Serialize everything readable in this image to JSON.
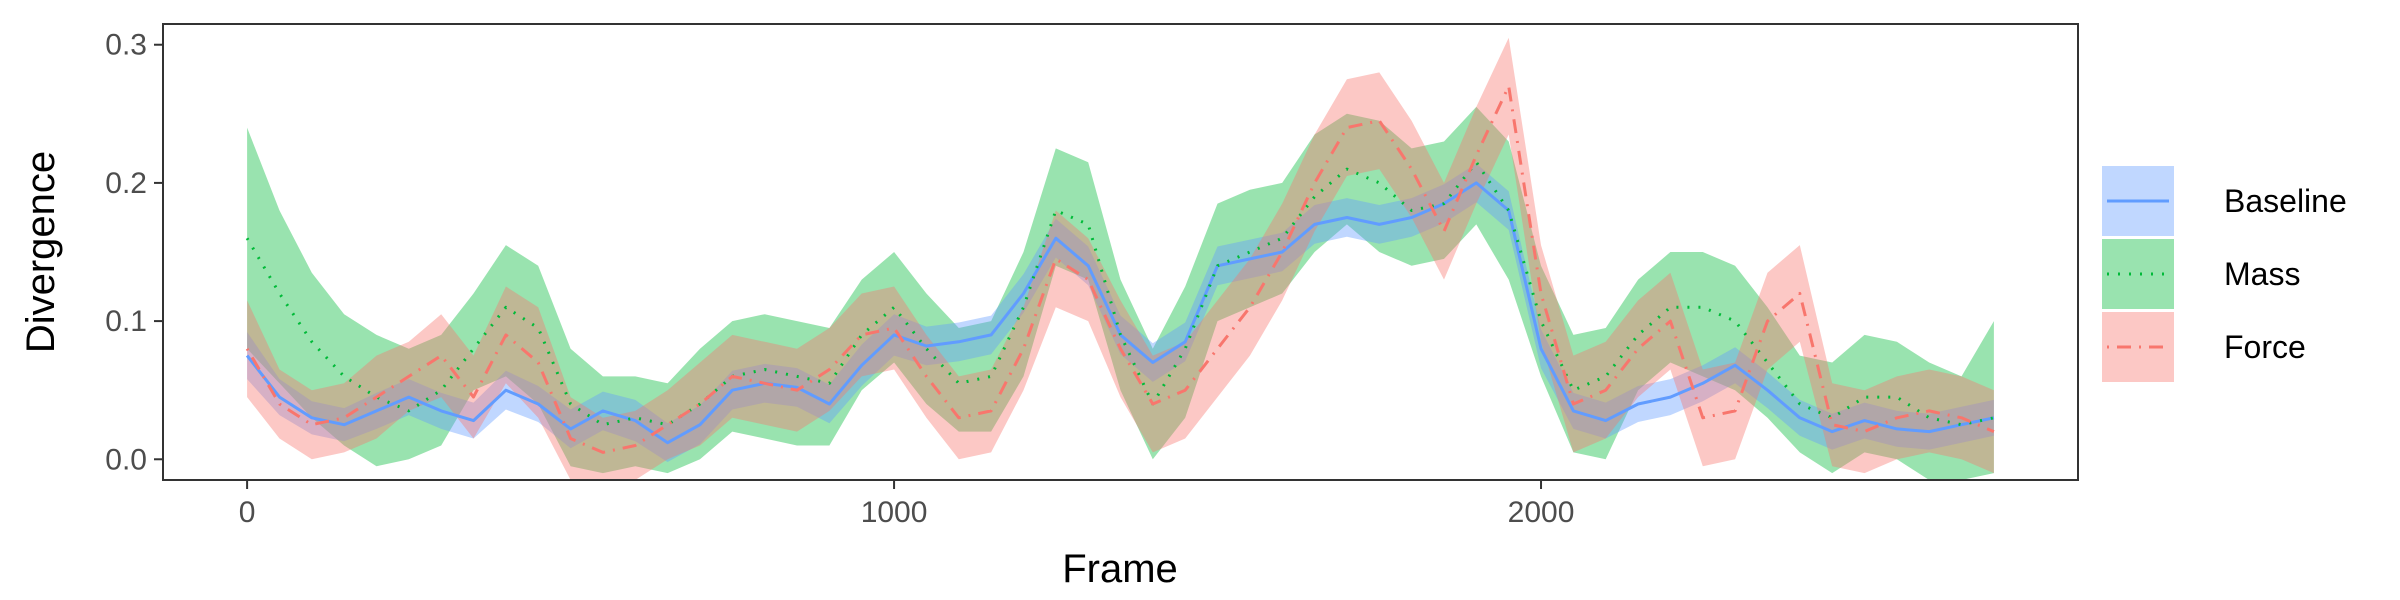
{
  "chart_data": {
    "type": "line",
    "xlabel": "Frame",
    "ylabel": "Divergence",
    "xlim": [
      -130,
      2830
    ],
    "ylim": [
      -0.015,
      0.315
    ],
    "x_ticks": [
      0,
      1000,
      2000
    ],
    "x_tick_labels": [
      "0",
      "1000",
      "2000"
    ],
    "y_ticks": [
      0.0,
      0.1,
      0.2,
      0.3
    ],
    "y_tick_labels": [
      "0.0",
      "0.1",
      "0.2",
      "0.3"
    ],
    "grid": false,
    "legend_position": "right",
    "x": [
      0,
      50,
      100,
      150,
      200,
      250,
      300,
      350,
      400,
      450,
      500,
      550,
      600,
      650,
      700,
      750,
      800,
      850,
      900,
      950,
      1000,
      1050,
      1100,
      1150,
      1200,
      1250,
      1300,
      1350,
      1400,
      1450,
      1500,
      1550,
      1600,
      1650,
      1700,
      1750,
      1800,
      1850,
      1900,
      1950,
      2000,
      2050,
      2100,
      2150,
      2200,
      2250,
      2300,
      2350,
      2400,
      2450,
      2500,
      2550,
      2600,
      2650,
      2700
    ],
    "series": [
      {
        "name": "Baseline",
        "color": "#619CFF",
        "line_style": "solid",
        "values": [
          0.075,
          0.045,
          0.03,
          0.025,
          0.035,
          0.045,
          0.035,
          0.028,
          0.05,
          0.04,
          0.022,
          0.035,
          0.028,
          0.012,
          0.025,
          0.05,
          0.055,
          0.052,
          0.04,
          0.068,
          0.09,
          0.082,
          0.085,
          0.09,
          0.12,
          0.16,
          0.14,
          0.09,
          0.07,
          0.085,
          0.14,
          0.145,
          0.15,
          0.17,
          0.175,
          0.17,
          0.175,
          0.185,
          0.2,
          0.18,
          0.08,
          0.035,
          0.028,
          0.04,
          0.045,
          0.055,
          0.068,
          0.05,
          0.03,
          0.02,
          0.028,
          0.022,
          0.02,
          0.025,
          0.03
        ],
        "lower": [
          0.058,
          0.032,
          0.018,
          0.013,
          0.022,
          0.032,
          0.022,
          0.015,
          0.036,
          0.027,
          0.008,
          0.021,
          0.013,
          -0.002,
          0.011,
          0.036,
          0.041,
          0.038,
          0.026,
          0.053,
          0.075,
          0.068,
          0.071,
          0.076,
          0.106,
          0.146,
          0.126,
          0.076,
          0.056,
          0.071,
          0.126,
          0.131,
          0.136,
          0.156,
          0.161,
          0.156,
          0.161,
          0.171,
          0.186,
          0.166,
          0.066,
          0.022,
          0.015,
          0.027,
          0.032,
          0.042,
          0.055,
          0.037,
          0.017,
          0.007,
          0.015,
          0.009,
          0.007,
          0.012,
          0.017
        ],
        "upper": [
          0.092,
          0.058,
          0.042,
          0.037,
          0.048,
          0.058,
          0.048,
          0.041,
          0.064,
          0.053,
          0.036,
          0.049,
          0.043,
          0.026,
          0.039,
          0.064,
          0.069,
          0.066,
          0.054,
          0.083,
          0.105,
          0.096,
          0.099,
          0.104,
          0.134,
          0.174,
          0.154,
          0.104,
          0.084,
          0.099,
          0.154,
          0.159,
          0.164,
          0.184,
          0.189,
          0.184,
          0.189,
          0.199,
          0.214,
          0.194,
          0.094,
          0.048,
          0.041,
          0.053,
          0.058,
          0.068,
          0.081,
          0.063,
          0.043,
          0.033,
          0.041,
          0.035,
          0.033,
          0.038,
          0.043
        ]
      },
      {
        "name": "Mass",
        "color": "#00BA38",
        "line_style": "dotted",
        "values": [
          0.16,
          0.12,
          0.085,
          0.06,
          0.045,
          0.035,
          0.05,
          0.08,
          0.11,
          0.095,
          0.04,
          0.025,
          0.03,
          0.025,
          0.04,
          0.06,
          0.065,
          0.06,
          0.055,
          0.09,
          0.11,
          0.08,
          0.055,
          0.06,
          0.11,
          0.18,
          0.17,
          0.09,
          0.04,
          0.08,
          0.14,
          0.15,
          0.16,
          0.19,
          0.21,
          0.2,
          0.18,
          0.185,
          0.215,
          0.18,
          0.1,
          0.05,
          0.06,
          0.09,
          0.11,
          0.11,
          0.1,
          0.07,
          0.04,
          0.03,
          0.045,
          0.045,
          0.03,
          0.025,
          0.03
        ],
        "lower": [
          0.08,
          0.055,
          0.03,
          0.01,
          -0.005,
          0.0,
          0.01,
          0.05,
          0.06,
          0.04,
          -0.005,
          -0.01,
          -0.005,
          -0.01,
          0.0,
          0.02,
          0.015,
          0.01,
          0.01,
          0.05,
          0.07,
          0.04,
          0.02,
          0.02,
          0.06,
          0.14,
          0.13,
          0.05,
          0.0,
          0.03,
          0.1,
          0.11,
          0.12,
          0.15,
          0.17,
          0.15,
          0.14,
          0.145,
          0.17,
          0.13,
          0.06,
          0.005,
          0.0,
          0.05,
          0.07,
          0.06,
          0.05,
          0.03,
          0.005,
          -0.01,
          0.005,
          0.0,
          -0.015,
          -0.015,
          -0.01
        ],
        "upper": [
          0.24,
          0.18,
          0.135,
          0.105,
          0.09,
          0.08,
          0.09,
          0.12,
          0.155,
          0.14,
          0.08,
          0.06,
          0.06,
          0.055,
          0.08,
          0.1,
          0.105,
          0.1,
          0.095,
          0.13,
          0.15,
          0.12,
          0.095,
          0.1,
          0.15,
          0.225,
          0.215,
          0.13,
          0.08,
          0.125,
          0.185,
          0.195,
          0.2,
          0.235,
          0.25,
          0.245,
          0.225,
          0.23,
          0.255,
          0.23,
          0.14,
          0.09,
          0.095,
          0.13,
          0.15,
          0.15,
          0.14,
          0.11,
          0.075,
          0.07,
          0.09,
          0.085,
          0.07,
          0.06,
          0.1
        ]
      },
      {
        "name": "Force",
        "color": "#F8766D",
        "line_style": "dotdash",
        "values": [
          0.08,
          0.04,
          0.025,
          0.03,
          0.045,
          0.06,
          0.075,
          0.045,
          0.09,
          0.07,
          0.015,
          0.005,
          0.01,
          0.025,
          0.04,
          0.06,
          0.055,
          0.05,
          0.065,
          0.09,
          0.095,
          0.06,
          0.03,
          0.035,
          0.08,
          0.145,
          0.13,
          0.08,
          0.04,
          0.05,
          0.08,
          0.11,
          0.15,
          0.2,
          0.24,
          0.245,
          0.21,
          0.165,
          0.22,
          0.27,
          0.12,
          0.04,
          0.05,
          0.08,
          0.1,
          0.03,
          0.035,
          0.1,
          0.12,
          0.025,
          0.02,
          0.03,
          0.035,
          0.03,
          0.02
        ],
        "lower": [
          0.045,
          0.015,
          0.0,
          0.005,
          0.015,
          0.035,
          0.045,
          0.015,
          0.055,
          0.03,
          -0.015,
          -0.02,
          -0.015,
          0.0,
          0.01,
          0.03,
          0.025,
          0.02,
          0.035,
          0.06,
          0.065,
          0.03,
          0.0,
          0.005,
          0.05,
          0.11,
          0.1,
          0.045,
          0.005,
          0.015,
          0.045,
          0.075,
          0.115,
          0.165,
          0.205,
          0.21,
          0.175,
          0.13,
          0.185,
          0.235,
          0.085,
          0.005,
          0.015,
          0.045,
          0.065,
          -0.005,
          0.0,
          0.065,
          0.085,
          -0.005,
          -0.01,
          0.0,
          0.005,
          0.0,
          -0.01
        ],
        "upper": [
          0.115,
          0.065,
          0.05,
          0.055,
          0.075,
          0.085,
          0.105,
          0.075,
          0.125,
          0.11,
          0.045,
          0.03,
          0.035,
          0.05,
          0.07,
          0.09,
          0.085,
          0.08,
          0.095,
          0.12,
          0.125,
          0.09,
          0.06,
          0.065,
          0.11,
          0.18,
          0.16,
          0.115,
          0.075,
          0.085,
          0.115,
          0.145,
          0.185,
          0.235,
          0.275,
          0.28,
          0.245,
          0.2,
          0.255,
          0.305,
          0.155,
          0.075,
          0.085,
          0.115,
          0.135,
          0.065,
          0.07,
          0.135,
          0.155,
          0.055,
          0.05,
          0.06,
          0.065,
          0.06,
          0.05
        ]
      }
    ]
  }
}
